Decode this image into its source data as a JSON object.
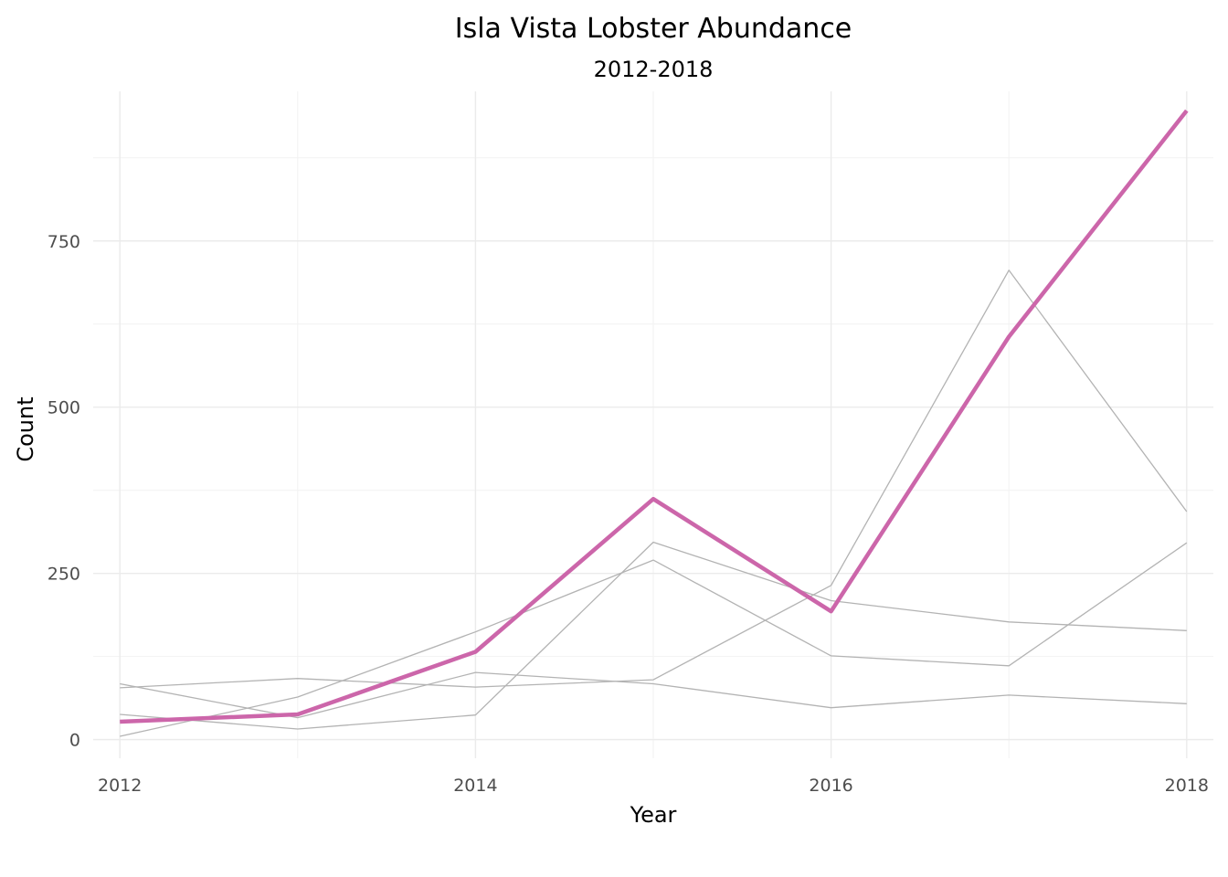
{
  "chart_data": {
    "type": "line",
    "title": "Isla Vista Lobster Abundance",
    "subtitle": "2012-2018",
    "xlabel": "Year",
    "ylabel": "Count",
    "xlim": [
      2011.85,
      2018.15
    ],
    "ylim": [
      -28,
      975
    ],
    "x_ticks": [
      2012,
      2014,
      2016,
      2018
    ],
    "y_ticks": [
      0,
      250,
      500,
      750
    ],
    "x_tick_labels": [
      "2012",
      "2014",
      "2016",
      "2018"
    ],
    "y_tick_labels": [
      "0",
      "250",
      "500",
      "750"
    ],
    "grid": true,
    "legend": "none",
    "x": [
      2012,
      2013,
      2014,
      2015,
      2016,
      2017,
      2018
    ],
    "series": [
      {
        "values": [
          84,
          33,
          101,
          84,
          48,
          67,
          54
        ],
        "color": "#b3b3b3",
        "highlight": false
      },
      {
        "values": [
          78,
          92,
          79,
          90,
          232,
          706,
          343
        ],
        "color": "#b3b3b3",
        "highlight": false
      },
      {
        "values": [
          38,
          16,
          37,
          297,
          209,
          177,
          164
        ],
        "color": "#b3b3b3",
        "highlight": false
      },
      {
        "values": [
          5,
          64,
          162,
          270,
          126,
          111,
          296
        ],
        "color": "#b3b3b3",
        "highlight": false
      },
      {
        "values": [
          27,
          38,
          132,
          362,
          193,
          606,
          946
        ],
        "color": "#cc66aa",
        "highlight": true
      }
    ]
  }
}
